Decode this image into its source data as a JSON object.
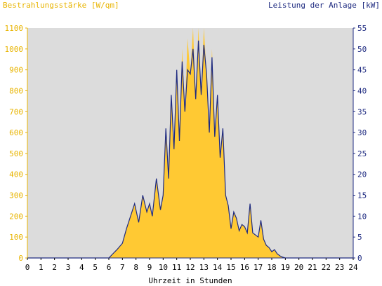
{
  "chart_data": {
    "type": "area",
    "left_axis_title": "Bestrahlungsstärke [W/qm]",
    "right_axis_title": "Leistung der Anlage [kW]",
    "xlabel": "Uhrzeit in Stunden",
    "xlim": [
      0,
      24
    ],
    "ylim_left": [
      0,
      1100
    ],
    "ylim_right": [
      0,
      55
    ],
    "x_ticks": [
      "0",
      "1",
      "2",
      "3",
      "4",
      "5",
      "6",
      "7",
      "8",
      "9",
      "10",
      "11",
      "12",
      "13",
      "14",
      "15",
      "16",
      "17",
      "18",
      "19",
      "20",
      "21",
      "22",
      "23",
      "24"
    ],
    "y_ticks_left": [
      "0",
      "100",
      "200",
      "300",
      "400",
      "500",
      "600",
      "700",
      "800",
      "900",
      "1000",
      "1100"
    ],
    "y_ticks_right": [
      "0",
      "5",
      "10",
      "15",
      "20",
      "25",
      "30",
      "35",
      "40",
      "45",
      "50",
      "55"
    ],
    "grid": false,
    "colors": {
      "irradiance_fill": "#ffc933",
      "power_line": "#1e2a80",
      "plot_bg": "#dcdcdc",
      "left_axis": "#e8b400",
      "right_axis": "#1e2a80"
    },
    "series": [
      {
        "axis": "left",
        "style": "filled-area",
        "x": [
          0,
          6.0,
          6.3,
          6.6,
          7.0,
          7.3,
          7.6,
          7.9,
          8.2,
          8.5,
          8.8,
          9.0,
          9.2,
          9.5,
          9.8,
          10.0,
          10.2,
          10.4,
          10.6,
          10.8,
          11.0,
          11.2,
          11.4,
          11.6,
          11.8,
          12.0,
          12.2,
          12.4,
          12.6,
          12.8,
          13.0,
          13.2,
          13.4,
          13.6,
          13.8,
          14.0,
          14.2,
          14.4,
          14.6,
          14.8,
          15.0,
          15.2,
          15.4,
          15.6,
          15.8,
          16.0,
          16.2,
          16.4,
          16.6,
          16.8,
          17.0,
          17.2,
          17.4,
          17.6,
          17.8,
          18.0,
          18.2,
          18.4,
          18.6,
          18.8,
          19.0,
          24
        ],
        "values": [
          0,
          0,
          20,
          40,
          70,
          140,
          200,
          260,
          170,
          300,
          220,
          260,
          200,
          380,
          230,
          300,
          620,
          380,
          780,
          520,
          900,
          560,
          1000,
          700,
          1050,
          880,
          1100,
          760,
          1100,
          780,
          1100,
          880,
          600,
          1000,
          580,
          780,
          480,
          620,
          300,
          250,
          140,
          220,
          190,
          130,
          160,
          150,
          120,
          260,
          120,
          110,
          100,
          180,
          90,
          60,
          50,
          30,
          40,
          20,
          10,
          5,
          0,
          0
        ]
      },
      {
        "axis": "right",
        "style": "line",
        "x": [
          0,
          6.0,
          6.3,
          6.6,
          7.0,
          7.3,
          7.6,
          7.9,
          8.2,
          8.5,
          8.8,
          9.0,
          9.2,
          9.5,
          9.8,
          10.0,
          10.2,
          10.4,
          10.6,
          10.8,
          11.0,
          11.2,
          11.4,
          11.6,
          11.8,
          12.0,
          12.2,
          12.4,
          12.6,
          12.8,
          13.0,
          13.2,
          13.4,
          13.6,
          13.8,
          14.0,
          14.2,
          14.4,
          14.6,
          14.8,
          15.0,
          15.2,
          15.4,
          15.6,
          15.8,
          16.0,
          16.2,
          16.4,
          16.6,
          16.8,
          17.0,
          17.2,
          17.4,
          17.6,
          17.8,
          18.0,
          18.2,
          18.4,
          18.6,
          18.8,
          19.0,
          24
        ],
        "values": [
          0,
          0,
          1,
          2,
          3.5,
          7,
          10,
          13,
          8.5,
          15,
          11,
          13,
          10,
          19,
          11.5,
          15,
          31,
          19,
          39,
          26,
          45,
          28,
          47,
          35,
          45,
          44,
          50,
          38,
          52,
          39,
          51,
          44,
          30,
          48,
          29,
          39,
          24,
          31,
          15,
          12.5,
          7,
          11,
          9.5,
          6.5,
          8,
          7.5,
          6,
          13,
          6,
          5.5,
          5,
          9,
          4.5,
          3,
          2.5,
          1.5,
          2,
          1,
          0.5,
          0.2,
          0,
          0
        ]
      }
    ]
  }
}
